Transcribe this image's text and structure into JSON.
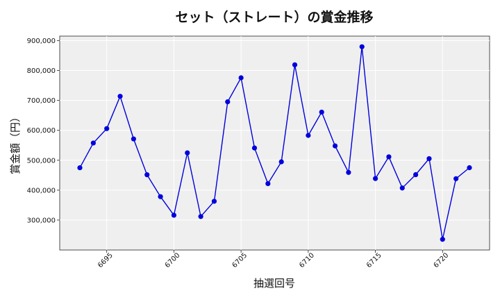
{
  "chart_data": {
    "type": "line",
    "title": "セット（ストレート）の賞金推移",
    "xlabel": "抽選回号",
    "ylabel": "賞金額（円）",
    "xlim": [
      6691.5,
      6723.5
    ],
    "ylim": [
      200000,
      915000
    ],
    "xticks": [
      6695,
      6700,
      6705,
      6710,
      6715,
      6720
    ],
    "yticks": [
      300000,
      400000,
      500000,
      600000,
      700000,
      800000,
      900000
    ],
    "ytick_labels": [
      "300,000",
      "400,000",
      "500,000",
      "600,000",
      "700,000",
      "800,000",
      "900,000"
    ],
    "grid": true,
    "series": [
      {
        "color": "#0000dd",
        "x": [
          6693,
          6694,
          6695,
          6696,
          6697,
          6698,
          6699,
          6700,
          6701,
          6702,
          6703,
          6704,
          6705,
          6706,
          6707,
          6708,
          6709,
          6710,
          6711,
          6712,
          6713,
          6714,
          6715,
          6716,
          6717,
          6718,
          6719,
          6720,
          6721,
          6722
        ],
        "y": [
          474900,
          557700,
          605800,
          713800,
          571300,
          451500,
          378300,
          316300,
          524900,
          311900,
          362900,
          695400,
          775700,
          541000,
          421900,
          494800,
          819000,
          583000,
          661000,
          548000,
          459300,
          879500,
          438900,
          511500,
          407200,
          451800,
          505400,
          235700,
          438400,
          475100
        ]
      }
    ]
  }
}
